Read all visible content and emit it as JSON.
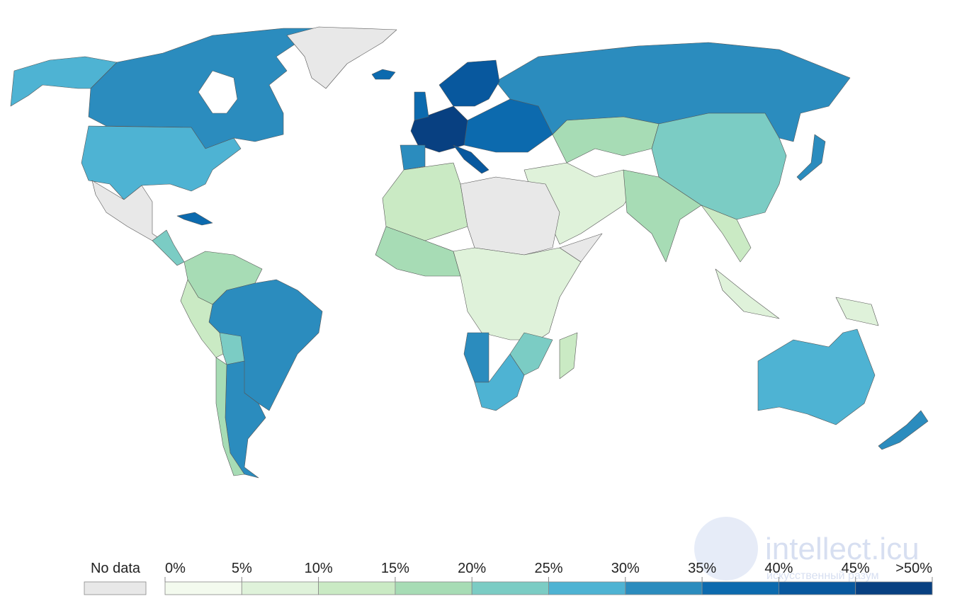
{
  "legend": {
    "no_data": {
      "label": "No data",
      "color": "#e8e8e8"
    },
    "ticks": [
      "0%",
      "5%",
      "10%",
      "15%",
      "20%",
      "25%",
      "30%",
      "35%",
      "40%",
      "45%",
      ">50%"
    ],
    "colors": [
      "#f3faee",
      "#dff2da",
      "#caeac4",
      "#a7dcb5",
      "#7bccc4",
      "#4eb3d3",
      "#2b8cbe",
      "#0c6aae",
      "#08589e",
      "#084081"
    ]
  },
  "watermark": {
    "title": "intellect.icu",
    "subtitle": "искусственный разум"
  }
}
